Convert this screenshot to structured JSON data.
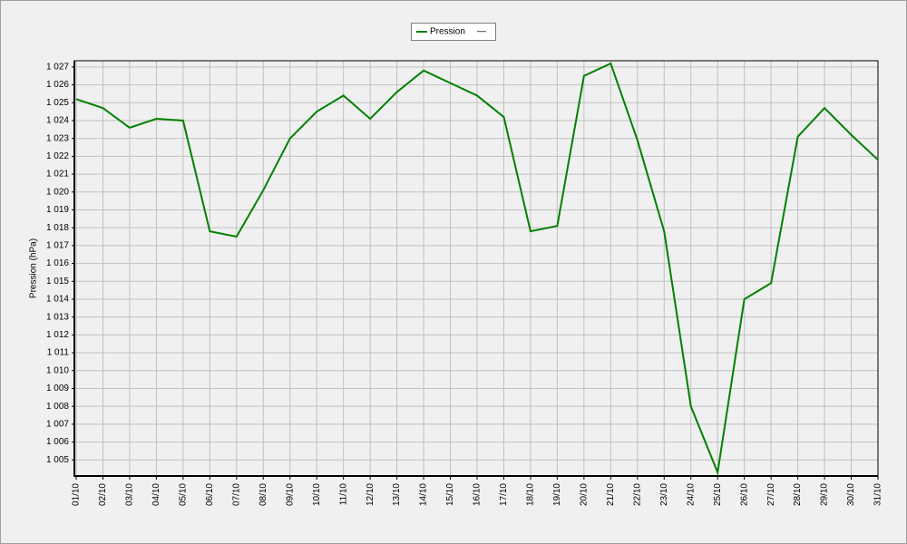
{
  "chart_data": {
    "type": "line",
    "y_label": "Pression (hPa)",
    "legend_extra": "—",
    "categories": [
      "01/10",
      "02/10",
      "03/10",
      "04/10",
      "05/10",
      "06/10",
      "07/10",
      "08/10",
      "09/10",
      "10/10",
      "11/10",
      "12/10",
      "13/10",
      "14/10",
      "15/10",
      "16/10",
      "17/10",
      "18/10",
      "19/10",
      "20/10",
      "21/10",
      "22/10",
      "23/10",
      "24/10",
      "25/10",
      "26/10",
      "27/10",
      "28/10",
      "29/10",
      "30/10",
      "31/10"
    ],
    "series": [
      {
        "name": "Pression",
        "color": "#008000",
        "values": [
          1025.2,
          1024.7,
          1023.6,
          1024.1,
          1024.0,
          1017.8,
          1017.5,
          1020.1,
          1023.0,
          1024.5,
          1025.4,
          1024.1,
          1025.6,
          1026.8,
          1026.1,
          1025.4,
          1024.2,
          1017.8,
          1018.1,
          1026.5,
          1027.2,
          1022.9,
          1017.8,
          1008.0,
          1004.3,
          1014.0,
          1014.9,
          1023.1,
          1024.7,
          1023.2,
          1021.8
        ]
      }
    ],
    "ylim": [
      1004.1,
      1027.35
    ],
    "yticks": [
      {
        "value": 1005,
        "label": "1 005"
      },
      {
        "value": 1006,
        "label": "1 006"
      },
      {
        "value": 1007,
        "label": "1 007"
      },
      {
        "value": 1008,
        "label": "1 008"
      },
      {
        "value": 1009,
        "label": "1 009"
      },
      {
        "value": 1010,
        "label": "1 010"
      },
      {
        "value": 1011,
        "label": "1 011"
      },
      {
        "value": 1012,
        "label": "1 012"
      },
      {
        "value": 1013,
        "label": "1 013"
      },
      {
        "value": 1014,
        "label": "1 014"
      },
      {
        "value": 1015,
        "label": "1 015"
      },
      {
        "value": 1016,
        "label": "1 016"
      },
      {
        "value": 1017,
        "label": "1 017"
      },
      {
        "value": 1018,
        "label": "1 018"
      },
      {
        "value": 1019,
        "label": "1 019"
      },
      {
        "value": 1020,
        "label": "1 020"
      },
      {
        "value": 1021,
        "label": "1 021"
      },
      {
        "value": 1022,
        "label": "1 022"
      },
      {
        "value": 1023,
        "label": "1 023"
      },
      {
        "value": 1024,
        "label": "1 024"
      },
      {
        "value": 1025,
        "label": "1 025"
      },
      {
        "value": 1026,
        "label": "1 026"
      },
      {
        "value": 1027,
        "label": "1 027"
      }
    ],
    "grid": true
  }
}
